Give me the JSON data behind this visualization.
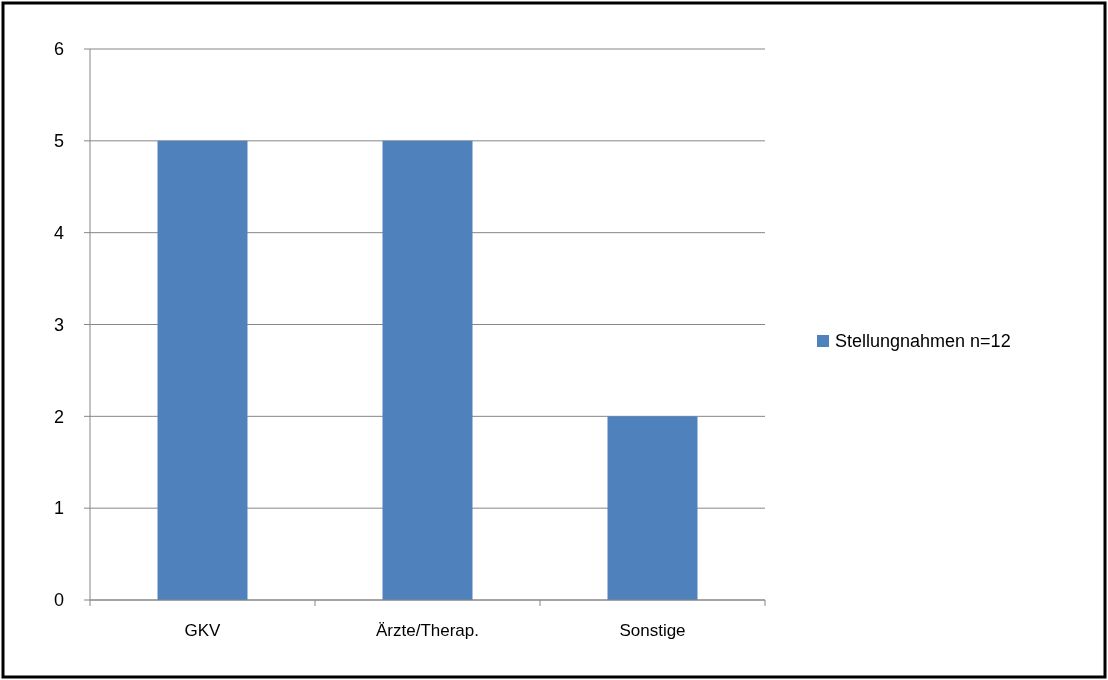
{
  "chart_data": {
    "type": "bar",
    "categories": [
      "GKV",
      "Ärzte/Therap.",
      "Sonstige"
    ],
    "series": [
      {
        "name": "Stellungnahmen n=12",
        "color": "#4f81bd",
        "values": [
          5,
          5,
          2
        ]
      }
    ],
    "ylim": [
      0,
      6
    ],
    "yticks": [
      0,
      1,
      2,
      3,
      4,
      5,
      6
    ],
    "grid": "y",
    "legend": "right"
  }
}
